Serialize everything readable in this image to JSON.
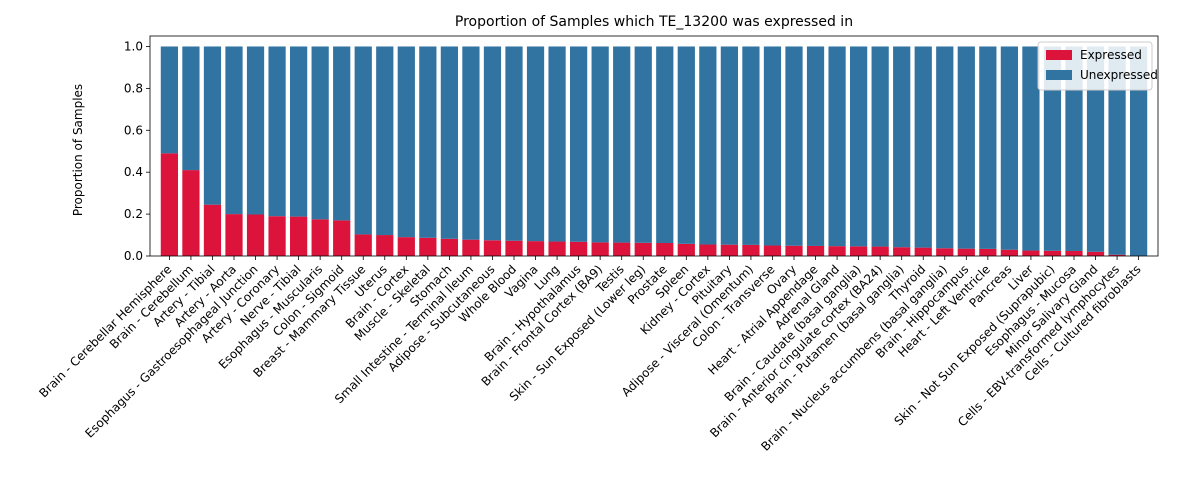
{
  "chart_data": {
    "type": "bar",
    "stacked": true,
    "title": "Proportion of Samples which TE_13200 was expressed in",
    "xlabel": "",
    "ylabel": "Proportion of Samples",
    "ylim": [
      0,
      1.05
    ],
    "yticks": [
      "0.0",
      "0.2",
      "0.4",
      "0.6",
      "0.8",
      "1.0"
    ],
    "legend_position": "top-right",
    "categories": [
      "Brain - Cerebellar Hemisphere",
      "Brain - Cerebellum",
      "Artery - Tibial",
      "Artery - Aorta",
      "Esophagus - Gastroesophageal Junction",
      "Artery - Coronary",
      "Nerve - Tibial",
      "Esophagus - Muscularis",
      "Colon - Sigmoid",
      "Breast - Mammary Tissue",
      "Uterus",
      "Brain - Cortex",
      "Muscle - Skeletal",
      "Stomach",
      "Small Intestine - Terminal Ileum",
      "Adipose - Subcutaneous",
      "Whole Blood",
      "Vagina",
      "Lung",
      "Brain - Hypothalamus",
      "Brain - Frontal Cortex (BA9)",
      "Testis",
      "Skin - Sun Exposed (Lower leg)",
      "Prostate",
      "Spleen",
      "Kidney - Cortex",
      "Pituitary",
      "Adipose - Visceral (Omentum)",
      "Colon - Transverse",
      "Ovary",
      "Heart - Atrial Appendage",
      "Adrenal Gland",
      "Brain - Caudate (basal ganglia)",
      "Brain - Anterior cingulate cortex (BA24)",
      "Brain - Putamen (basal ganglia)",
      "Thyroid",
      "Brain - Nucleus accumbens (basal ganglia)",
      "Brain - Hippocampus",
      "Heart - Left Ventricle",
      "Pancreas",
      "Liver",
      "Skin - Not Sun Exposed (Suprapubic)",
      "Esophagus - Mucosa",
      "Minor Salivary Gland",
      "Cells - EBV-transformed lymphocytes",
      "Cells - Cultured fibroblasts"
    ],
    "series": [
      {
        "name": "Expressed",
        "color": "#dc143c",
        "values": [
          0.49,
          0.41,
          0.245,
          0.2,
          0.198,
          0.19,
          0.188,
          0.175,
          0.17,
          0.103,
          0.1,
          0.09,
          0.087,
          0.082,
          0.078,
          0.075,
          0.073,
          0.071,
          0.069,
          0.068,
          0.065,
          0.064,
          0.063,
          0.062,
          0.058,
          0.055,
          0.054,
          0.053,
          0.05,
          0.049,
          0.048,
          0.047,
          0.046,
          0.045,
          0.042,
          0.04,
          0.037,
          0.035,
          0.034,
          0.03,
          0.026,
          0.025,
          0.024,
          0.02,
          0.006,
          0.0
        ]
      },
      {
        "name": "Unexpressed",
        "color": "#3274a1",
        "values": [
          0.51,
          0.59,
          0.755,
          0.8,
          0.802,
          0.81,
          0.812,
          0.825,
          0.83,
          0.897,
          0.9,
          0.91,
          0.913,
          0.918,
          0.922,
          0.925,
          0.927,
          0.929,
          0.931,
          0.932,
          0.935,
          0.936,
          0.937,
          0.938,
          0.942,
          0.945,
          0.946,
          0.947,
          0.95,
          0.951,
          0.952,
          0.953,
          0.954,
          0.955,
          0.958,
          0.96,
          0.963,
          0.965,
          0.966,
          0.97,
          0.974,
          0.975,
          0.976,
          0.98,
          0.994,
          1.0
        ]
      }
    ]
  }
}
